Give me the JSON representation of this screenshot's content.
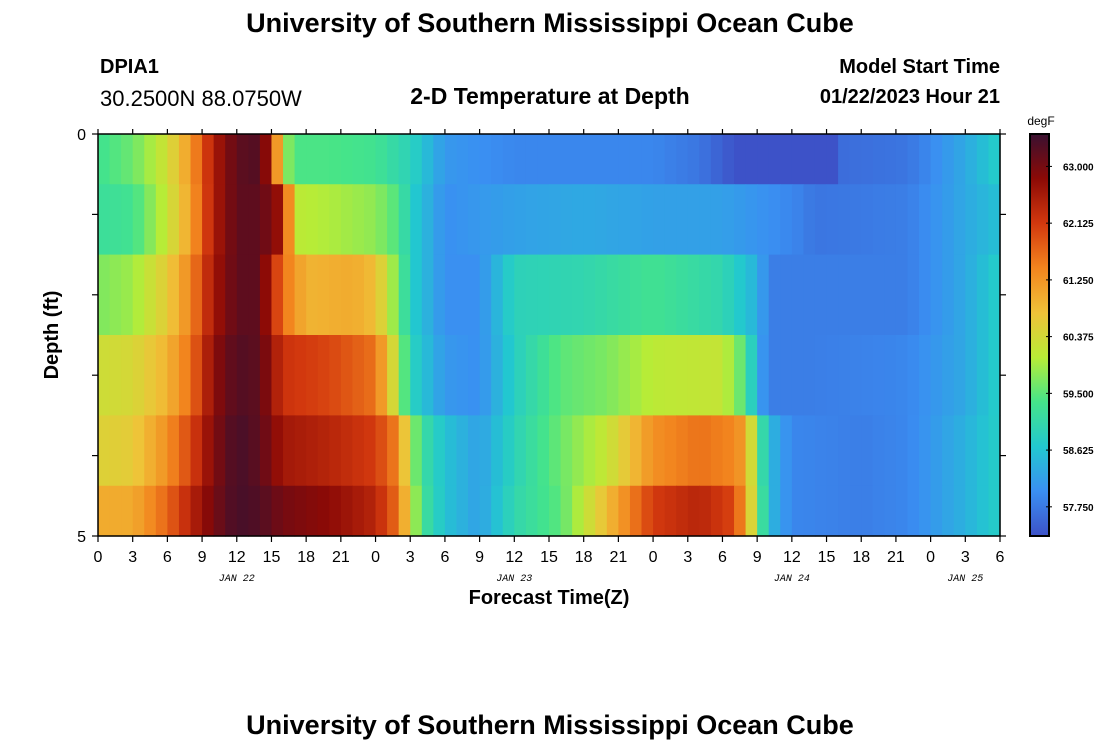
{
  "header": {
    "title": "University of Southern Mississippi Ocean Cube",
    "station": "DPIA1",
    "coords": "30.2500N  88.0750W",
    "subtitle": "2-D Temperature at Depth",
    "model_start_label": "Model Start Time",
    "model_start_time": "01/22/2023 Hour 21"
  },
  "footer": {
    "title": "University of Southern Mississippi Ocean Cube"
  },
  "chart_data": {
    "type": "heatmap",
    "title": "2-D Temperature at Depth",
    "xlabel": "Forecast Time(Z)",
    "ylabel": "Depth (ft)",
    "x_tick_labels": [
      "0",
      "3",
      "6",
      "9",
      "12",
      "15",
      "18",
      "21",
      "0",
      "3",
      "6",
      "9",
      "12",
      "15",
      "18",
      "21",
      "0",
      "3",
      "6",
      "9",
      "12",
      "15",
      "18",
      "21",
      "0",
      "3",
      "6"
    ],
    "date_labels": [
      {
        "label": "JAN 22",
        "hour": 12
      },
      {
        "label": "JAN 23",
        "hour": 36
      },
      {
        "label": "JAN 24",
        "hour": 60
      },
      {
        "label": "JAN 25",
        "hour": 75
      }
    ],
    "x_range_hours": [
      0,
      78
    ],
    "y_tick_labels": [
      "0",
      "5"
    ],
    "depth_range_ft": [
      0,
      5
    ],
    "colorbar": {
      "unit": "degF",
      "tick_labels": [
        "63.000",
        "62.125",
        "61.250",
        "60.375",
        "59.500",
        "58.625",
        "57.750"
      ],
      "range": [
        57.3,
        63.5
      ]
    },
    "colors": {
      "c0": "#3d52c8",
      "c1": "#3a8ff2",
      "c2": "#22c8cf",
      "c3": "#45e48a",
      "c4": "#b8ec36",
      "c5": "#f0c238",
      "c6": "#f2841e",
      "c7": "#d2380e",
      "c8": "#8c0a06",
      "c9": "#3a1030"
    },
    "layers": [
      {
        "depth_ft": 0.25,
        "profile": [
          [
            0,
            59.3
          ],
          [
            3,
            59.6
          ],
          [
            6,
            60.3
          ],
          [
            8,
            61.2
          ],
          [
            10,
            62.5
          ],
          [
            12,
            63.2
          ],
          [
            14,
            63.3
          ],
          [
            15,
            62.4
          ],
          [
            16,
            60.0
          ],
          [
            17,
            59.4
          ],
          [
            20,
            59.4
          ],
          [
            24,
            59.3
          ],
          [
            27,
            58.9
          ],
          [
            30,
            58.1
          ],
          [
            36,
            57.9
          ],
          [
            42,
            57.9
          ],
          [
            48,
            57.9
          ],
          [
            52,
            57.7
          ],
          [
            56,
            57.2
          ],
          [
            59,
            57.2
          ],
          [
            62,
            56.7
          ],
          [
            63,
            56.6
          ],
          [
            63.9,
            56.2
          ],
          [
            64,
            57.6
          ],
          [
            70,
            57.7
          ],
          [
            75,
            58.3
          ],
          [
            78,
            58.8
          ]
        ]
      },
      {
        "depth_ft": 1.0,
        "profile": [
          [
            0,
            59.2
          ],
          [
            3,
            59.3
          ],
          [
            6,
            60.2
          ],
          [
            8,
            61.1
          ],
          [
            10,
            62.5
          ],
          [
            12,
            63.2
          ],
          [
            14,
            63.2
          ],
          [
            16,
            62.6
          ],
          [
            17,
            60.1
          ],
          [
            20,
            60.0
          ],
          [
            24,
            59.8
          ],
          [
            26,
            59.4
          ],
          [
            27,
            58.8
          ],
          [
            30,
            58.0
          ],
          [
            36,
            58.2
          ],
          [
            42,
            58.3
          ],
          [
            48,
            58.2
          ],
          [
            54,
            58.2
          ],
          [
            60,
            57.9
          ],
          [
            62,
            57.7
          ],
          [
            70,
            57.8
          ],
          [
            75,
            58.3
          ],
          [
            78,
            58.6
          ]
        ]
      },
      {
        "depth_ft": 2.0,
        "profile": [
          [
            0,
            59.7
          ],
          [
            3,
            59.9
          ],
          [
            6,
            60.6
          ],
          [
            8,
            61.4
          ],
          [
            10,
            62.6
          ],
          [
            12,
            63.2
          ],
          [
            14,
            63.2
          ],
          [
            16,
            61.6
          ],
          [
            18,
            60.9
          ],
          [
            22,
            61.0
          ],
          [
            24,
            60.8
          ],
          [
            26,
            59.6
          ],
          [
            27,
            58.8
          ],
          [
            30,
            58.0
          ],
          [
            33,
            58.0
          ],
          [
            36,
            58.9
          ],
          [
            42,
            59.0
          ],
          [
            48,
            59.3
          ],
          [
            54,
            59.0
          ],
          [
            57,
            58.4
          ],
          [
            58,
            57.8
          ],
          [
            62,
            57.8
          ],
          [
            70,
            57.8
          ],
          [
            75,
            58.3
          ],
          [
            78,
            58.8
          ]
        ]
      },
      {
        "depth_ft": 3.0,
        "profile": [
          [
            0,
            60.3
          ],
          [
            3,
            60.4
          ],
          [
            6,
            60.9
          ],
          [
            8,
            61.6
          ],
          [
            10,
            62.8
          ],
          [
            12,
            63.3
          ],
          [
            14,
            63.2
          ],
          [
            16,
            62.2
          ],
          [
            20,
            62.0
          ],
          [
            24,
            61.6
          ],
          [
            26,
            60.0
          ],
          [
            27,
            58.9
          ],
          [
            30,
            58.1
          ],
          [
            33,
            58.0
          ],
          [
            36,
            58.8
          ],
          [
            40,
            59.5
          ],
          [
            44,
            59.7
          ],
          [
            48,
            60.1
          ],
          [
            54,
            60.2
          ],
          [
            56,
            59.4
          ],
          [
            57,
            58.3
          ],
          [
            58,
            57.8
          ],
          [
            62,
            57.8
          ],
          [
            70,
            57.9
          ],
          [
            75,
            58.3
          ],
          [
            78,
            58.8
          ]
        ]
      },
      {
        "depth_ft": 4.0,
        "profile": [
          [
            0,
            60.5
          ],
          [
            3,
            60.6
          ],
          [
            6,
            61.3
          ],
          [
            8,
            62.0
          ],
          [
            10,
            62.9
          ],
          [
            12,
            63.4
          ],
          [
            14,
            63.2
          ],
          [
            16,
            62.6
          ],
          [
            20,
            62.4
          ],
          [
            24,
            62.1
          ],
          [
            26,
            61.4
          ],
          [
            27,
            60.0
          ],
          [
            28,
            59.2
          ],
          [
            30,
            58.6
          ],
          [
            33,
            58.2
          ],
          [
            36,
            58.9
          ],
          [
            40,
            59.6
          ],
          [
            44,
            60.2
          ],
          [
            48,
            61.3
          ],
          [
            52,
            61.6
          ],
          [
            55,
            61.4
          ],
          [
            56,
            61.1
          ],
          [
            57,
            59.6
          ],
          [
            58,
            58.5
          ],
          [
            60,
            57.9
          ],
          [
            66,
            57.8
          ],
          [
            70,
            57.9
          ],
          [
            75,
            58.4
          ],
          [
            78,
            58.8
          ]
        ]
      },
      {
        "depth_ft": 4.75,
        "profile": [
          [
            0,
            61.0
          ],
          [
            3,
            61.0
          ],
          [
            6,
            61.7
          ],
          [
            8,
            62.4
          ],
          [
            10,
            63.0
          ],
          [
            12,
            63.4
          ],
          [
            14,
            63.3
          ],
          [
            16,
            63.0
          ],
          [
            20,
            62.8
          ],
          [
            24,
            62.4
          ],
          [
            26,
            61.6
          ],
          [
            27,
            60.3
          ],
          [
            28,
            59.3
          ],
          [
            30,
            58.6
          ],
          [
            33,
            58.2
          ],
          [
            36,
            59.0
          ],
          [
            40,
            59.5
          ],
          [
            44,
            60.8
          ],
          [
            48,
            62.1
          ],
          [
            52,
            62.4
          ],
          [
            55,
            62.0
          ],
          [
            56,
            61.1
          ],
          [
            57,
            59.8
          ],
          [
            58,
            58.5
          ],
          [
            60,
            57.9
          ],
          [
            66,
            57.8
          ],
          [
            70,
            57.9
          ],
          [
            75,
            58.4
          ],
          [
            78,
            58.8
          ]
        ]
      }
    ]
  }
}
